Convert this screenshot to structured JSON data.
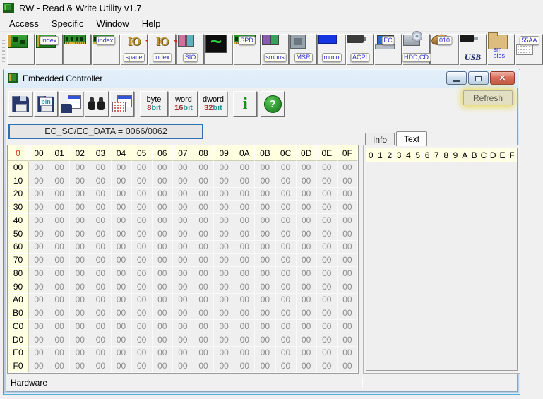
{
  "app": {
    "title": "RW - Read & Write Utility v1.7"
  },
  "menu": {
    "items": [
      "Access",
      "Specific",
      "Window",
      "Help"
    ]
  },
  "main_toolbar": {
    "buttons": [
      {
        "name": "pci",
        "icon": "circuit-board",
        "bubble": ""
      },
      {
        "name": "pci-index",
        "icon": "circuit-board",
        "bubble": "index"
      },
      {
        "name": "memory",
        "icon": "ram",
        "bubble": ""
      },
      {
        "name": "memory-index",
        "icon": "ram",
        "bubble": "index"
      },
      {
        "name": "io-space",
        "icon": "io",
        "bubble": "space"
      },
      {
        "name": "io-index",
        "icon": "io",
        "bubble": "index"
      },
      {
        "name": "super-io",
        "icon": "sio",
        "bubble": "SIO"
      },
      {
        "name": "clock-generator",
        "icon": "wave",
        "bubble": ""
      },
      {
        "name": "spd",
        "icon": "ram",
        "bubble": "SPD"
      },
      {
        "name": "smbus",
        "icon": "chips",
        "bubble": "smbus"
      },
      {
        "name": "msr",
        "icon": "cpu",
        "bubble": "MSR"
      },
      {
        "name": "mmio",
        "icon": "mmio",
        "bubble": "mmio"
      },
      {
        "name": "acpi",
        "icon": "battery",
        "bubble": "ACPI"
      },
      {
        "name": "embedded-controller",
        "icon": "laptop",
        "bubble": "EC"
      },
      {
        "name": "hdd-cd",
        "icon": "drive-cd",
        "bubble": "HDD,CD"
      },
      {
        "name": "disk-sector",
        "icon": "drive",
        "bubble": "010"
      },
      {
        "name": "usb",
        "icon": "usb",
        "bubble": "USB"
      },
      {
        "name": "smbios",
        "icon": "folder",
        "bubble": "sm bios"
      },
      {
        "name": "boot-sector",
        "icon": "grid-dots",
        "bubble": "55AA"
      }
    ]
  },
  "child_window": {
    "title": "Embedded Controller",
    "toolbar": {
      "bin_label": "bin",
      "byte_button": {
        "line1": "byte",
        "num": "8",
        "unit": "bit"
      },
      "word_button": {
        "line1": "word",
        "num": "16",
        "unit": "bit"
      },
      "dword_button": {
        "line1": "dword",
        "num": "32",
        "unit": "bit"
      },
      "info_glyph": "i",
      "help_glyph": "?"
    },
    "refresh_button": "Refresh",
    "address_display": "EC_SC/EC_DATA = 0066/0062",
    "tabs": [
      {
        "label": "Info",
        "active": false
      },
      {
        "label": "Text",
        "active": true
      }
    ],
    "status": "Hardware"
  },
  "hex_grid": {
    "corner": "0",
    "col_headers": [
      "00",
      "01",
      "02",
      "03",
      "04",
      "05",
      "06",
      "07",
      "08",
      "09",
      "0A",
      "0B",
      "0C",
      "0D",
      "0E",
      "0F"
    ],
    "row_headers": [
      "00",
      "10",
      "20",
      "30",
      "40",
      "50",
      "60",
      "70",
      "80",
      "90",
      "A0",
      "B0",
      "C0",
      "D0",
      "E0",
      "F0"
    ],
    "fill_value": "00"
  },
  "text_panel": {
    "headers": [
      "0",
      "1",
      "2",
      "3",
      "4",
      "5",
      "6",
      "7",
      "8",
      "9",
      "A",
      "B",
      "C",
      "D",
      "E",
      "F"
    ]
  }
}
